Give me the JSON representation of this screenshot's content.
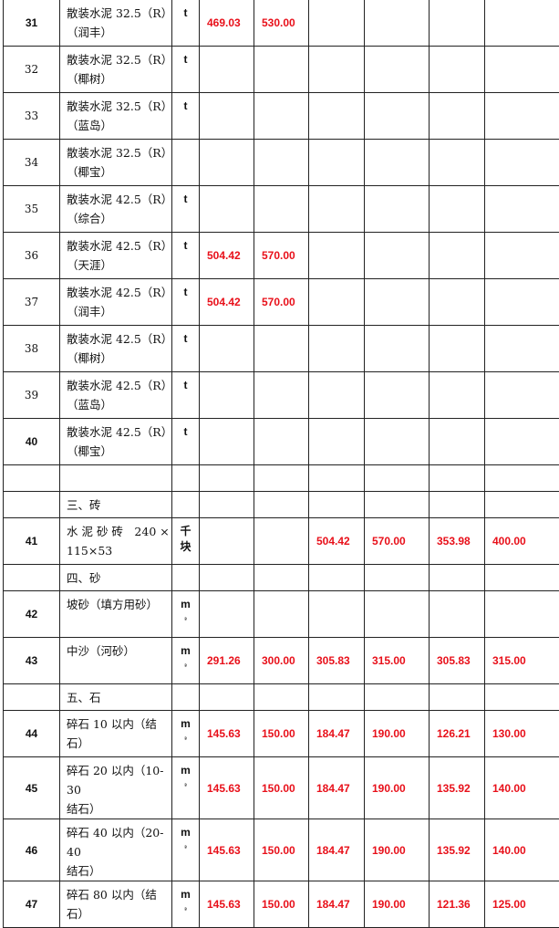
{
  "rows": [
    {
      "num": "31",
      "name": [
        "散装水泥 32.5（R）",
        "（润丰）"
      ],
      "unit": [
        "t"
      ],
      "values": [
        "469.03",
        "530.00",
        "",
        "",
        "",
        ""
      ]
    },
    {
      "num": "32",
      "serif": true,
      "name": [
        "散装水泥 32.5（R）",
        "（椰树）"
      ],
      "unit": [
        "t"
      ],
      "values": [
        "",
        "",
        "",
        "",
        "",
        ""
      ]
    },
    {
      "num": "33",
      "serif": true,
      "name": [
        "散装水泥 32.5（R）",
        "（蓝岛）"
      ],
      "unit": [
        "t"
      ],
      "values": [
        "",
        "",
        "",
        "",
        "",
        ""
      ]
    },
    {
      "num": "34",
      "serif": true,
      "name": [
        "散装水泥 32.5（R）",
        "（椰宝）"
      ],
      "unit": [],
      "values": [
        "",
        "",
        "",
        "",
        "",
        ""
      ]
    },
    {
      "num": "35",
      "serif": true,
      "name": [
        "散装水泥 42.5（R）",
        "（综合）"
      ],
      "unit": [
        "t"
      ],
      "values": [
        "",
        "",
        "",
        "",
        "",
        ""
      ]
    },
    {
      "num": "36",
      "serif": true,
      "name": [
        "散装水泥 42.5（R）",
        "（天涯）"
      ],
      "unit": [
        "t"
      ],
      "values": [
        "504.42",
        "570.00",
        "",
        "",
        "",
        ""
      ]
    },
    {
      "num": "37",
      "serif": true,
      "name": [
        "散装水泥 42.5（R）",
        "（润丰）"
      ],
      "unit": [
        "t"
      ],
      "values": [
        "504.42",
        "570.00",
        "",
        "",
        "",
        ""
      ]
    },
    {
      "num": "38",
      "serif": true,
      "name": [
        "散装水泥 42.5（R）",
        "（椰树）"
      ],
      "unit": [
        "t"
      ],
      "values": [
        "",
        "",
        "",
        "",
        "",
        ""
      ]
    },
    {
      "num": "39",
      "serif": true,
      "name": [
        "散装水泥 42.5（R）",
        "（蓝岛）"
      ],
      "unit": [
        "t"
      ],
      "values": [
        "",
        "",
        "",
        "",
        "",
        ""
      ]
    },
    {
      "num": "40",
      "name": [
        "散装水泥 42.5（R）",
        "（椰宝）"
      ],
      "unit": [
        "t"
      ],
      "values": [
        "",
        "",
        "",
        "",
        "",
        ""
      ]
    },
    {
      "short": true,
      "num": "",
      "name": [],
      "unit": [],
      "values": [
        "",
        "",
        "",
        "",
        "",
        ""
      ]
    },
    {
      "short": true,
      "num": "",
      "name": [
        "三、砖"
      ],
      "unit": [],
      "values": [
        "",
        "",
        "",
        "",
        "",
        ""
      ]
    },
    {
      "num": "41",
      "name": [
        "水 泥 砂 砖　240 ×",
        "115×53"
      ],
      "unit": [
        "千",
        "块"
      ],
      "values": [
        "",
        "",
        "504.42",
        "570.00",
        "353.98",
        "400.00"
      ]
    },
    {
      "short": true,
      "num": "",
      "name": [
        "四、砂"
      ],
      "unit": [],
      "values": [
        "",
        "",
        "",
        "",
        "",
        ""
      ]
    },
    {
      "num": "42",
      "name": [
        "坡砂（填方用砂）"
      ],
      "unit": [
        "m",
        "³"
      ],
      "values": [
        "",
        "",
        "",
        "",
        "",
        ""
      ]
    },
    {
      "num": "43",
      "name": [
        "中沙（河砂）"
      ],
      "unit": [
        "m",
        "³"
      ],
      "values": [
        "291.26",
        "300.00",
        "305.83",
        "315.00",
        "305.83",
        "315.00"
      ]
    },
    {
      "short": true,
      "num": "",
      "name": [
        "五、石"
      ],
      "unit": [],
      "values": [
        "",
        "",
        "",
        "",
        "",
        ""
      ]
    },
    {
      "num": "44",
      "name": [
        "碎石 10 以内（结石）"
      ],
      "unit": [
        "m",
        "³"
      ],
      "values": [
        "145.63",
        "150.00",
        "184.47",
        "190.00",
        "126.21",
        "130.00"
      ]
    },
    {
      "num": "45",
      "name": [
        "碎石 20 以内（10-30",
        "结石）"
      ],
      "unit": [
        "m",
        "³"
      ],
      "values": [
        "145.63",
        "150.00",
        "184.47",
        "190.00",
        "135.92",
        "140.00"
      ]
    },
    {
      "num": "46",
      "name": [
        "碎石 40 以内（20-40",
        "结石）"
      ],
      "unit": [
        "m",
        "³"
      ],
      "values": [
        "145.63",
        "150.00",
        "184.47",
        "190.00",
        "135.92",
        "140.00"
      ]
    },
    {
      "num": "47",
      "name": [
        "碎石 80 以内（结石）"
      ],
      "unit": [
        "m",
        "³"
      ],
      "values": [
        "145.63",
        "150.00",
        "184.47",
        "190.00",
        "121.36",
        "125.00"
      ]
    }
  ]
}
